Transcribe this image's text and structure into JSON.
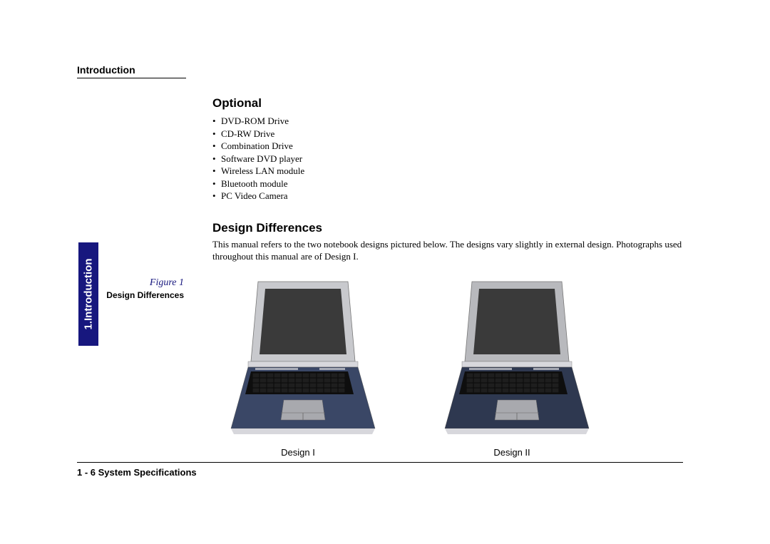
{
  "colors": {
    "background": "#ffffff",
    "text": "#000000",
    "tab_bg": "#17177e",
    "tab_text": "#ffffff",
    "fig_label": "#17177e",
    "laptop_screen": "#3a3a3a",
    "laptop_bezel_d1": "#c8c9cd",
    "laptop_bezel_d2": "#b8b9bd",
    "laptop_body_d1": "#3a4766",
    "laptop_body_d2": "#2e3850",
    "laptop_keys": "#1e1e1e",
    "laptop_trim": "#d7d7dc",
    "laptop_touchpad": "#a8a9ae"
  },
  "header": {
    "section": "Introduction"
  },
  "side_tab": {
    "label": "1.Introduction"
  },
  "optional": {
    "heading": "Optional",
    "items": [
      "DVD-ROM Drive",
      "CD-RW Drive",
      "Combination Drive",
      "Software DVD player",
      "Wireless LAN module",
      "Bluetooth module",
      "PC Video Camera"
    ]
  },
  "design_diff": {
    "heading": "Design Differences",
    "body": "This manual refers to the two notebook designs pictured below. The designs vary slightly in external design. Photographs used throughout this manual are of Design I."
  },
  "figure": {
    "label": "Figure 1",
    "caption": "Design Differences",
    "items": [
      {
        "label": "Design I"
      },
      {
        "label": "Design II"
      }
    ]
  },
  "footer": {
    "text": "1 - 6  System Specifications"
  }
}
